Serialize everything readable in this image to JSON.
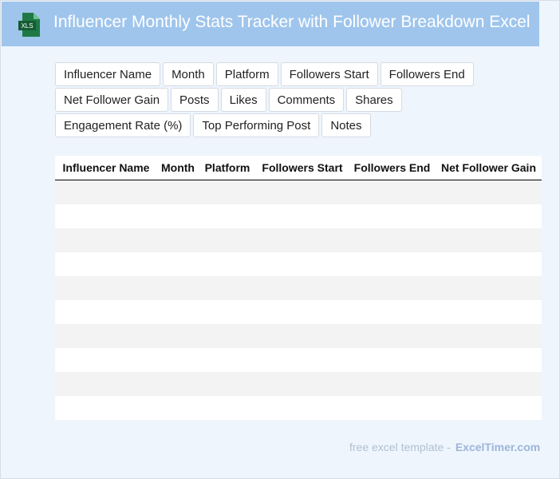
{
  "header": {
    "icon_label": "XLS",
    "title": "Influencer Monthly Stats Tracker with Follower Breakdown Excel"
  },
  "fields": [
    "Influencer Name",
    "Month",
    "Platform",
    "Followers Start",
    "Followers End",
    "Net Follower Gain",
    "Posts",
    "Likes",
    "Comments",
    "Shares",
    "Engagement Rate (%)",
    "Top Performing Post",
    "Notes"
  ],
  "table": {
    "columns": [
      "Influencer Name",
      "Month",
      "Platform",
      "Followers Start",
      "Followers End",
      "Net Follower Gain"
    ]
  },
  "footer": {
    "text": "free excel template -",
    "brand": "ExcelTimer.com"
  }
}
